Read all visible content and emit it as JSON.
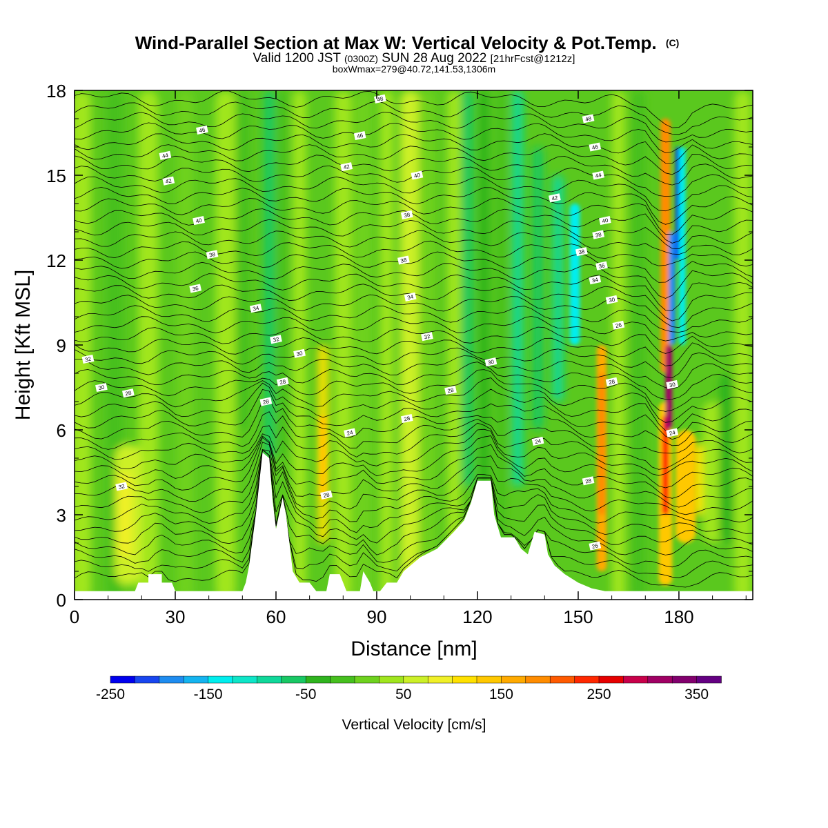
{
  "chart_data": {
    "type": "heatmap",
    "title_main": "Wind-Parallel Section at Max W: Vertical Velocity & Pot.Temp.",
    "title_c": "(C)",
    "subtitle_parts": [
      "Valid 1200 JST",
      "(0300Z)",
      "SUN 28 Aug 2022",
      "[21hrFcst@1212z]"
    ],
    "subtitle2": "boxWmax=279@40.72,141.53,1306m",
    "xlabel": "Distance [nm]",
    "ylabel": "Height [Kft MSL]",
    "xlim": [
      0,
      202
    ],
    "ylim": [
      0,
      18
    ],
    "x_ticks": [
      "0",
      "30",
      "60",
      "90",
      "120",
      "150",
      "180"
    ],
    "y_ticks": [
      "0",
      "3",
      "6",
      "9",
      "12",
      "15",
      "18"
    ],
    "colorbar": {
      "label": "Vertical Velocity [cm/s]",
      "min": -250,
      "max": 375,
      "step": 25,
      "tick_labels": [
        "-250",
        "-150",
        "-50",
        "50",
        "150",
        "250",
        "350"
      ],
      "colors": [
        "#0000ee",
        "#1846f0",
        "#1e8cf0",
        "#14b4f0",
        "#00eeee",
        "#0ee6c8",
        "#10d89a",
        "#18c864",
        "#2fb41e",
        "#46c01e",
        "#6ed21e",
        "#a0e61e",
        "#ccf028",
        "#f0f028",
        "#ffe100",
        "#ffc800",
        "#ffaa00",
        "#ff8c00",
        "#ff5a00",
        "#ff2800",
        "#e60000",
        "#c8004a",
        "#a00064",
        "#82006e",
        "#640082"
      ]
    },
    "theta_contour_labels": [
      "24",
      "26",
      "28",
      "30",
      "32",
      "34",
      "36",
      "38",
      "40",
      "42",
      "44",
      "46",
      "48"
    ],
    "terrain_top_kft": [
      [
        0,
        0.3
      ],
      [
        18,
        0.3
      ],
      [
        19,
        0.6
      ],
      [
        22,
        0.6
      ],
      [
        22,
        0.9
      ],
      [
        26,
        0.9
      ],
      [
        26,
        0.6
      ],
      [
        29,
        0.6
      ],
      [
        30,
        0.3
      ],
      [
        50,
        0.3
      ],
      [
        51,
        0.6
      ],
      [
        52,
        1.2
      ],
      [
        54,
        3.0
      ],
      [
        56,
        5.2
      ],
      [
        58,
        5.0
      ],
      [
        59,
        3.5
      ],
      [
        60,
        2.5
      ],
      [
        62,
        3.6
      ],
      [
        63,
        3.0
      ],
      [
        64,
        2.0
      ],
      [
        65,
        1.0
      ],
      [
        67,
        0.6
      ],
      [
        70,
        0.6
      ],
      [
        72,
        0.3
      ],
      [
        75,
        0.3
      ],
      [
        76,
        0.9
      ],
      [
        79,
        0.9
      ],
      [
        80,
        0.6
      ],
      [
        81,
        0.3
      ],
      [
        85,
        0.3
      ],
      [
        86,
        1.0
      ],
      [
        88,
        0.6
      ],
      [
        89,
        0.3
      ],
      [
        91,
        0.3
      ],
      [
        93,
        0.6
      ],
      [
        96,
        0.6
      ],
      [
        98,
        1.0
      ],
      [
        103,
        1.5
      ],
      [
        108,
        1.8
      ],
      [
        113,
        2.4
      ],
      [
        116,
        2.8
      ],
      [
        118,
        3.4
      ],
      [
        120,
        4.2
      ],
      [
        124,
        4.2
      ],
      [
        125,
        3.0
      ],
      [
        127,
        2.2
      ],
      [
        131,
        2.2
      ],
      [
        133,
        1.8
      ],
      [
        135,
        1.6
      ],
      [
        137,
        2.4
      ],
      [
        140,
        2.3
      ],
      [
        141,
        1.6
      ],
      [
        143,
        1.2
      ],
      [
        146,
        0.9
      ],
      [
        150,
        0.6
      ],
      [
        154,
        0.4
      ],
      [
        158,
        0.3
      ],
      [
        202,
        0.3
      ]
    ]
  }
}
